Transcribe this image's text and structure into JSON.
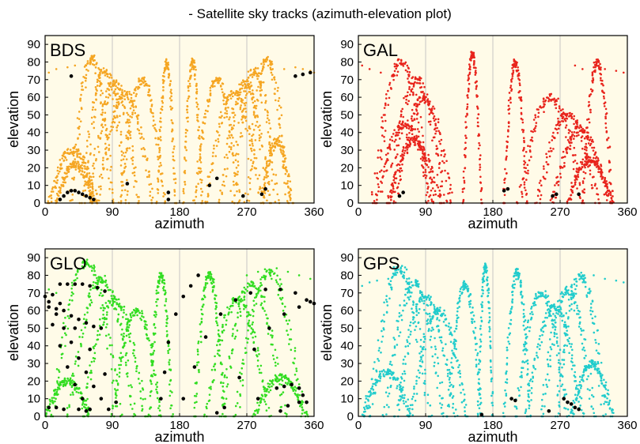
{
  "page": {
    "title": "- Satellite sky tracks (azimuth-elevation plot)"
  },
  "style": {
    "plot_background": "#fffbe8",
    "highlight_color": "#000000",
    "vertical_gridlines": true
  },
  "chart_data": [
    {
      "type": "scatter",
      "system": "BDS",
      "color": "#f5a623",
      "xlabel": "azimuth",
      "ylabel": "elevation",
      "xlim": [
        0,
        360
      ],
      "ylim": [
        0,
        95
      ],
      "xticks": [
        0,
        90,
        180,
        270,
        360
      ],
      "yticks": [
        0,
        10,
        20,
        30,
        40,
        50,
        60,
        70,
        80,
        90
      ],
      "tracks": [
        {
          "az0": 90,
          "az1": 35,
          "el_max": 82,
          "spread": 28
        },
        {
          "az0": 110,
          "az1": 50,
          "el_max": 75,
          "spread": 30
        },
        {
          "az0": 125,
          "az1": 60,
          "el_max": 68,
          "spread": 26
        },
        {
          "az0": 145,
          "az1": 70,
          "el_max": 62,
          "spread": 22
        },
        {
          "az0": 160,
          "az1": 100,
          "el_max": 70,
          "spread": 18
        },
        {
          "az0": 175,
          "az1": 150,
          "el_max": 80,
          "spread": 10
        },
        {
          "az0": 185,
          "az1": 210,
          "el_max": 80,
          "spread": 10
        },
        {
          "az0": 200,
          "az1": 260,
          "el_max": 70,
          "spread": 18
        },
        {
          "az0": 215,
          "az1": 290,
          "el_max": 62,
          "spread": 22
        },
        {
          "az0": 235,
          "az1": 300,
          "el_max": 68,
          "spread": 26
        },
        {
          "az0": 250,
          "az1": 310,
          "el_max": 75,
          "spread": 30
        },
        {
          "az0": 270,
          "az1": 325,
          "el_max": 82,
          "spread": 28
        },
        {
          "az0": 5,
          "az1": 70,
          "el_max": 30,
          "spread": 25
        },
        {
          "az0": 15,
          "az1": 65,
          "el_max": 22,
          "spread": 18
        },
        {
          "az0": 290,
          "az1": 330,
          "el_max": 35,
          "spread": 20
        }
      ],
      "points": [
        [
          5,
          74
        ],
        [
          15,
          76
        ],
        [
          30,
          77
        ],
        [
          40,
          78
        ],
        [
          55,
          78
        ],
        [
          320,
          76
        ],
        [
          335,
          77
        ],
        [
          345,
          76
        ],
        [
          355,
          75
        ],
        [
          360,
          74
        ]
      ],
      "highlight": [
        [
          20,
          2
        ],
        [
          25,
          4
        ],
        [
          30,
          6
        ],
        [
          35,
          7
        ],
        [
          40,
          7
        ],
        [
          45,
          6
        ],
        [
          50,
          5
        ],
        [
          55,
          4
        ],
        [
          60,
          3
        ],
        [
          65,
          2
        ],
        [
          35,
          72
        ],
        [
          110,
          11
        ],
        [
          165,
          2
        ],
        [
          165,
          6
        ],
        [
          220,
          10
        ],
        [
          230,
          14
        ],
        [
          265,
          4
        ],
        [
          290,
          5
        ],
        [
          295,
          8
        ],
        [
          335,
          72
        ],
        [
          345,
          73
        ],
        [
          355,
          74
        ]
      ]
    },
    {
      "type": "scatter",
      "system": "GAL",
      "color": "#e8241c",
      "xlabel": "azimuth",
      "ylabel": "elevation",
      "xlim": [
        0,
        360
      ],
      "ylim": [
        0,
        95
      ],
      "xticks": [
        0,
        90,
        180,
        270,
        360
      ],
      "yticks": [
        0,
        10,
        20,
        30,
        40,
        50,
        60,
        70,
        80,
        90
      ],
      "tracks": [
        {
          "az0": 95,
          "az1": 20,
          "el_max": 80,
          "spread": 30
        },
        {
          "az0": 115,
          "az1": 40,
          "el_max": 70,
          "spread": 30
        },
        {
          "az0": 125,
          "az1": 50,
          "el_max": 60,
          "spread": 24
        },
        {
          "az0": 165,
          "az1": 140,
          "el_max": 85,
          "spread": 8
        },
        {
          "az0": 25,
          "az1": 100,
          "el_max": 45,
          "spread": 30
        },
        {
          "az0": 40,
          "az1": 110,
          "el_max": 35,
          "spread": 25
        },
        {
          "az0": 195,
          "az1": 225,
          "el_max": 80,
          "spread": 12
        },
        {
          "az0": 215,
          "az1": 300,
          "el_max": 60,
          "spread": 30
        },
        {
          "az0": 240,
          "az1": 320,
          "el_max": 50,
          "spread": 28
        },
        {
          "az0": 260,
          "az1": 335,
          "el_max": 42,
          "spread": 24
        },
        {
          "az0": 280,
          "az1": 340,
          "el_max": 25,
          "spread": 18
        },
        {
          "az0": 300,
          "az1": 340,
          "el_max": 80,
          "spread": 15
        }
      ],
      "points": [
        [
          5,
          78
        ],
        [
          15,
          76
        ],
        [
          30,
          74
        ],
        [
          45,
          72
        ],
        [
          290,
          78
        ],
        [
          300,
          76
        ],
        [
          315,
          77
        ],
        [
          330,
          76
        ],
        [
          345,
          75
        ],
        [
          355,
          74
        ]
      ],
      "highlight": [
        [
          55,
          4
        ],
        [
          60,
          6
        ],
        [
          195,
          7
        ],
        [
          200,
          8
        ],
        [
          260,
          4
        ],
        [
          265,
          5
        ],
        [
          295,
          5
        ]
      ]
    },
    {
      "type": "scatter",
      "system": "GLO",
      "color": "#33dd22",
      "xlabel": "azimuth",
      "ylabel": "elevation",
      "xlim": [
        0,
        360
      ],
      "ylim": [
        0,
        95
      ],
      "xticks": [
        0,
        90,
        180,
        270,
        360
      ],
      "yticks": [
        0,
        10,
        20,
        30,
        40,
        50,
        60,
        70,
        80,
        90
      ],
      "tracks": [
        {
          "az0": 100,
          "az1": 10,
          "el_max": 88,
          "spread": 28
        },
        {
          "az0": 120,
          "az1": 30,
          "el_max": 78,
          "spread": 28
        },
        {
          "az0": 135,
          "az1": 50,
          "el_max": 66,
          "spread": 26
        },
        {
          "az0": 155,
          "az1": 90,
          "el_max": 60,
          "spread": 20
        },
        {
          "az0": 170,
          "az1": 140,
          "el_max": 80,
          "spread": 12
        },
        {
          "az0": 200,
          "az1": 240,
          "el_max": 80,
          "spread": 16
        },
        {
          "az0": 215,
          "az1": 300,
          "el_max": 66,
          "spread": 24
        },
        {
          "az0": 235,
          "az1": 320,
          "el_max": 75,
          "spread": 28
        },
        {
          "az0": 255,
          "az1": 345,
          "el_max": 82,
          "spread": 30
        },
        {
          "az0": 0,
          "az1": 60,
          "el_max": 20,
          "spread": 22
        },
        {
          "az0": 280,
          "az1": 350,
          "el_max": 22,
          "spread": 22
        }
      ],
      "points": [
        [
          5,
          72
        ],
        [
          15,
          70
        ],
        [
          60,
          68
        ],
        [
          270,
          80
        ],
        [
          285,
          82
        ],
        [
          310,
          84
        ],
        [
          325,
          82
        ],
        [
          340,
          80
        ],
        [
          355,
          78
        ]
      ],
      "highlight": [
        [
          5,
          62
        ],
        [
          15,
          61
        ],
        [
          25,
          60
        ],
        [
          35,
          57
        ],
        [
          45,
          55
        ],
        [
          55,
          53
        ],
        [
          65,
          51
        ],
        [
          75,
          50
        ],
        [
          10,
          69
        ],
        [
          20,
          75
        ],
        [
          30,
          75
        ],
        [
          40,
          75
        ],
        [
          50,
          75
        ],
        [
          60,
          74
        ],
        [
          70,
          73
        ],
        [
          80,
          71
        ],
        [
          5,
          65
        ],
        [
          15,
          58
        ],
        [
          25,
          50
        ],
        [
          35,
          42
        ],
        [
          45,
          33
        ],
        [
          55,
          25
        ],
        [
          65,
          17
        ],
        [
          75,
          10
        ],
        [
          85,
          4
        ],
        [
          0,
          68
        ],
        [
          10,
          52
        ],
        [
          20,
          40
        ],
        [
          30,
          28
        ],
        [
          40,
          18
        ],
        [
          50,
          10
        ],
        [
          60,
          4
        ],
        [
          20,
          64
        ],
        [
          40,
          50
        ],
        [
          60,
          38
        ],
        [
          80,
          24
        ],
        [
          95,
          8
        ],
        [
          5,
          5
        ],
        [
          15,
          5
        ],
        [
          25,
          4
        ],
        [
          45,
          4
        ],
        [
          55,
          3
        ],
        [
          155,
          10
        ],
        [
          160,
          25
        ],
        [
          165,
          42
        ],
        [
          175,
          58
        ],
        [
          185,
          68
        ],
        [
          195,
          74
        ],
        [
          205,
          80
        ],
        [
          185,
          10
        ],
        [
          200,
          28
        ],
        [
          215,
          45
        ],
        [
          235,
          58
        ],
        [
          255,
          66
        ],
        [
          275,
          70
        ],
        [
          295,
          72
        ],
        [
          315,
          72
        ],
        [
          335,
          70
        ],
        [
          350,
          66
        ],
        [
          360,
          64
        ],
        [
          240,
          5
        ],
        [
          260,
          22
        ],
        [
          280,
          38
        ],
        [
          300,
          50
        ],
        [
          320,
          58
        ],
        [
          340,
          62
        ],
        [
          355,
          65
        ],
        [
          310,
          16
        ],
        [
          320,
          17
        ],
        [
          330,
          18
        ],
        [
          340,
          16
        ],
        [
          345,
          12
        ],
        [
          350,
          8
        ],
        [
          340,
          8
        ],
        [
          325,
          6
        ],
        [
          315,
          3
        ],
        [
          285,
          10
        ],
        [
          230,
          2
        ]
      ]
    },
    {
      "type": "scatter",
      "system": "GPS",
      "color": "#22cccc",
      "xlabel": "azimuth",
      "ylabel": "elevation",
      "xlim": [
        0,
        360
      ],
      "ylim": [
        0,
        95
      ],
      "xticks": [
        0,
        90,
        180,
        270,
        360
      ],
      "yticks": [
        0,
        10,
        20,
        30,
        40,
        50,
        60,
        70,
        80,
        90
      ],
      "tracks": [
        {
          "az0": 95,
          "az1": 15,
          "el_max": 84,
          "spread": 30
        },
        {
          "az0": 115,
          "az1": 35,
          "el_max": 76,
          "spread": 30
        },
        {
          "az0": 130,
          "az1": 50,
          "el_max": 68,
          "spread": 28
        },
        {
          "az0": 145,
          "az1": 70,
          "el_max": 60,
          "spread": 24
        },
        {
          "az0": 165,
          "az1": 120,
          "el_max": 75,
          "spread": 16
        },
        {
          "az0": 180,
          "az1": 160,
          "el_max": 85,
          "spread": 8
        },
        {
          "az0": 195,
          "az1": 230,
          "el_max": 82,
          "spread": 12
        },
        {
          "az0": 210,
          "az1": 280,
          "el_max": 70,
          "spread": 20
        },
        {
          "az0": 225,
          "az1": 300,
          "el_max": 62,
          "spread": 24
        },
        {
          "az0": 245,
          "az1": 315,
          "el_max": 72,
          "spread": 28
        },
        {
          "az0": 265,
          "az1": 330,
          "el_max": 80,
          "spread": 30
        },
        {
          "az0": 5,
          "az1": 70,
          "el_max": 25,
          "spread": 24
        },
        {
          "az0": 285,
          "az1": 340,
          "el_max": 30,
          "spread": 20
        }
      ],
      "points": [
        [
          5,
          74
        ],
        [
          15,
          76
        ],
        [
          25,
          77
        ],
        [
          40,
          78
        ],
        [
          300,
          80
        ],
        [
          315,
          80
        ],
        [
          330,
          78
        ],
        [
          345,
          77
        ],
        [
          355,
          76
        ]
      ],
      "highlight": [
        [
          165,
          1
        ],
        [
          205,
          10
        ],
        [
          210,
          9
        ],
        [
          275,
          10
        ],
        [
          280,
          8
        ],
        [
          285,
          7
        ],
        [
          290,
          5
        ],
        [
          295,
          4
        ],
        [
          255,
          3
        ]
      ]
    }
  ]
}
